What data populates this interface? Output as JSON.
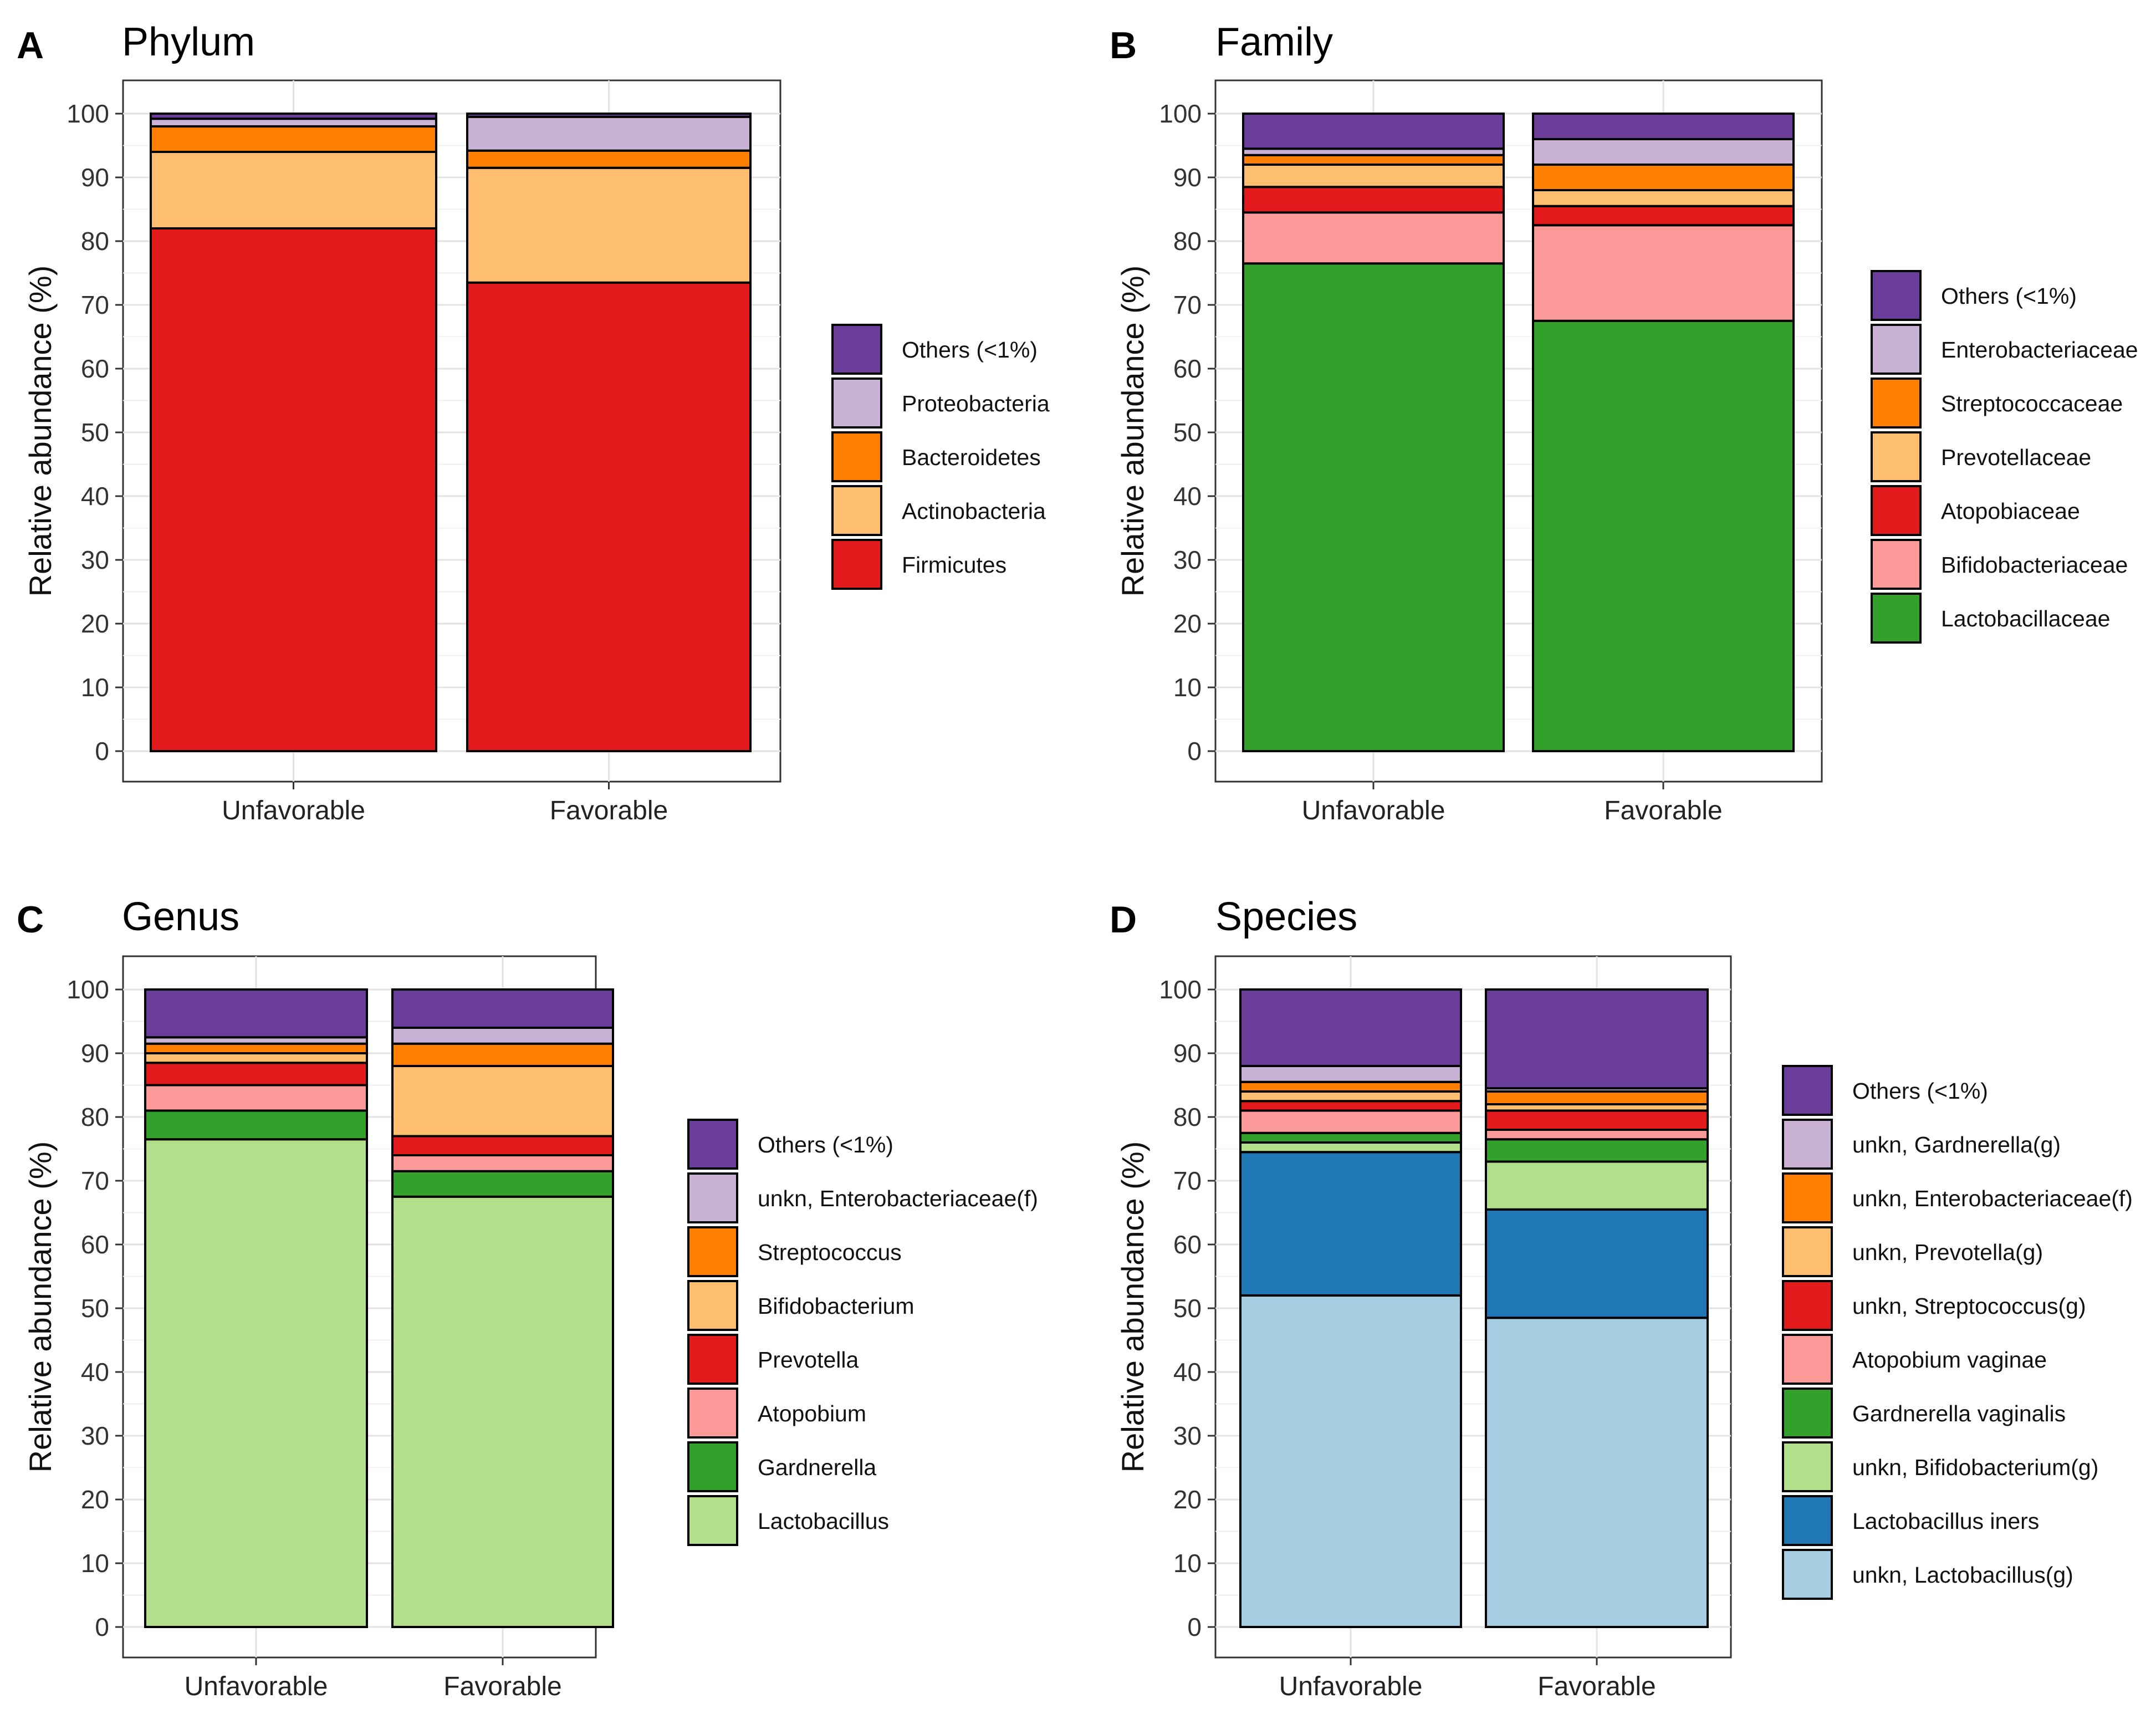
{
  "chart_data": [
    {
      "panel": "A",
      "type": "bar",
      "stacked": true,
      "title": "Phylum",
      "ylabel": "Relative abundance (%)",
      "xlabel": "",
      "ylim": [
        0,
        100
      ],
      "yticks": [
        0,
        10,
        20,
        30,
        40,
        50,
        60,
        70,
        80,
        90,
        100
      ],
      "categories": [
        "Unfavorable",
        "Favorable"
      ],
      "series": [
        {
          "name": "Firmicutes",
          "color": "#E31A1C",
          "values": [
            82,
            73.5
          ]
        },
        {
          "name": "Actinobacteria",
          "color": "#FDBF6F",
          "values": [
            12,
            18
          ]
        },
        {
          "name": "Bacteroidetes",
          "color": "#FF7F00",
          "values": [
            4,
            2.7
          ]
        },
        {
          "name": "Proteobacteria",
          "color": "#CAB2D6",
          "values": [
            1.2,
            5.3
          ]
        },
        {
          "name": "Others (<1%)",
          "color": "#6A3D9A",
          "values": [
            0.8,
            0.5
          ]
        }
      ]
    },
    {
      "panel": "B",
      "type": "bar",
      "stacked": true,
      "title": "Family",
      "ylabel": "Relative abundance (%)",
      "xlabel": "",
      "ylim": [
        0,
        100
      ],
      "yticks": [
        0,
        10,
        20,
        30,
        40,
        50,
        60,
        70,
        80,
        90,
        100
      ],
      "categories": [
        "Unfavorable",
        "Favorable"
      ],
      "series": [
        {
          "name": "Lactobacillaceae",
          "color": "#33A02C",
          "values": [
            76.5,
            67.5
          ]
        },
        {
          "name": "Bifidobacteriaceae",
          "color": "#FB9A99",
          "values": [
            8,
            15
          ]
        },
        {
          "name": "Atopobiaceae",
          "color": "#E31A1C",
          "values": [
            4,
            3
          ]
        },
        {
          "name": "Prevotellaceae",
          "color": "#FDBF6F",
          "values": [
            3.5,
            2.5
          ]
        },
        {
          "name": "Streptococcaceae",
          "color": "#FF7F00",
          "values": [
            1.5,
            4
          ]
        },
        {
          "name": "Enterobacteriaceae",
          "color": "#CAB2D6",
          "values": [
            1,
            4
          ]
        },
        {
          "name": "Others (<1%)",
          "color": "#6A3D9A",
          "values": [
            5.5,
            4
          ]
        }
      ]
    },
    {
      "panel": "C",
      "type": "bar",
      "stacked": true,
      "title": "Genus",
      "ylabel": "Relative abundance (%)",
      "xlabel": "",
      "ylim": [
        0,
        100
      ],
      "yticks": [
        0,
        10,
        20,
        30,
        40,
        50,
        60,
        70,
        80,
        90,
        100
      ],
      "categories": [
        "Unfavorable",
        "Favorable"
      ],
      "series": [
        {
          "name": "Lactobacillus",
          "color": "#B2DF8A",
          "values": [
            76.5,
            67.5
          ]
        },
        {
          "name": "Gardnerella",
          "color": "#33A02C",
          "values": [
            4.5,
            4
          ]
        },
        {
          "name": "Atopobium",
          "color": "#FB9A99",
          "values": [
            4,
            2.5
          ]
        },
        {
          "name": "Prevotella",
          "color": "#E31A1C",
          "values": [
            3.5,
            3
          ]
        },
        {
          "name": "Bifidobacterium",
          "color": "#FDBF6F",
          "values": [
            1.5,
            11
          ]
        },
        {
          "name": "Streptococcus",
          "color": "#FF7F00",
          "values": [
            1.5,
            3.5
          ]
        },
        {
          "name": "unkn, Enterobacteriaceae(f)",
          "color": "#CAB2D6",
          "values": [
            1,
            2.5
          ]
        },
        {
          "name": "Others (<1%)",
          "color": "#6A3D9A",
          "values": [
            7.5,
            6
          ]
        }
      ]
    },
    {
      "panel": "D",
      "type": "bar",
      "stacked": true,
      "title": "Species",
      "ylabel": "Relative abundance (%)",
      "xlabel": "",
      "ylim": [
        0,
        100
      ],
      "yticks": [
        0,
        10,
        20,
        30,
        40,
        50,
        60,
        70,
        80,
        90,
        100
      ],
      "categories": [
        "Unfavorable",
        "Favorable"
      ],
      "series": [
        {
          "name": "unkn, Lactobacillus(g)",
          "color": "#A6CEE3",
          "values": [
            52,
            48.5
          ]
        },
        {
          "name": "Lactobacillus iners",
          "color": "#1F78B4",
          "values": [
            22.5,
            17
          ]
        },
        {
          "name": "unkn, Bifidobacterium(g)",
          "color": "#B2DF8A",
          "values": [
            1.5,
            7.5
          ]
        },
        {
          "name": "Gardnerella vaginalis",
          "color": "#33A02C",
          "values": [
            1.5,
            3.5
          ]
        },
        {
          "name": "Atopobium vaginae",
          "color": "#FB9A99",
          "values": [
            3.5,
            1.5
          ]
        },
        {
          "name": "unkn, Streptococcus(g)",
          "color": "#E31A1C",
          "values": [
            1.5,
            3
          ]
        },
        {
          "name": "unkn, Prevotella(g)",
          "color": "#FDBF6F",
          "values": [
            1.5,
            1
          ]
        },
        {
          "name": "unkn, Enterobacteriaceae(f)",
          "color": "#FF7F00",
          "values": [
            1.5,
            2
          ]
        },
        {
          "name": "unkn, Gardnerella(g)",
          "color": "#CAB2D6",
          "values": [
            2.5,
            0.5
          ]
        },
        {
          "name": "Others (<1%)",
          "color": "#6A3D9A",
          "values": [
            12,
            15.5
          ]
        }
      ]
    }
  ]
}
